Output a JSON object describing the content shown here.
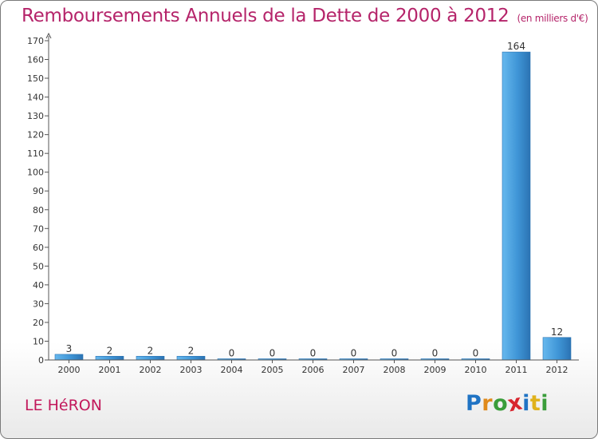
{
  "title": "Remboursements Annuels de la Dette de 2000 à 2012",
  "title_unit": "(en milliers d'€)",
  "commune": "LE HéRON",
  "logo": {
    "text": "Proxiti",
    "letter_colors": [
      "#1f73c4",
      "#e08a1b",
      "#3a9d3a",
      "#d8262f",
      "#1f73c4",
      "#e0b21b",
      "#3a9d3a"
    ]
  },
  "colors": {
    "title": "#b5246a",
    "bar": "#3f95d6",
    "bar_dark": "#2b73b3",
    "bar_light": "#66b8ee",
    "axis": "#555555",
    "grid": "#dddddd"
  },
  "chart_data": {
    "type": "bar",
    "title": "Remboursements Annuels de la Dette de 2000 à 2012",
    "ylabel": "",
    "xlabel": "",
    "ylim": [
      0,
      170
    ],
    "yticks": [
      0,
      10,
      20,
      30,
      40,
      50,
      60,
      70,
      80,
      90,
      100,
      110,
      120,
      130,
      140,
      150,
      160,
      170
    ],
    "grid": false,
    "categories": [
      "2000",
      "2001",
      "2002",
      "2003",
      "2004",
      "2005",
      "2006",
      "2007",
      "2008",
      "2009",
      "2010",
      "2011",
      "2012"
    ],
    "values": [
      3,
      2,
      2,
      2,
      0,
      0,
      0,
      0,
      0,
      0,
      0,
      164,
      12
    ]
  }
}
